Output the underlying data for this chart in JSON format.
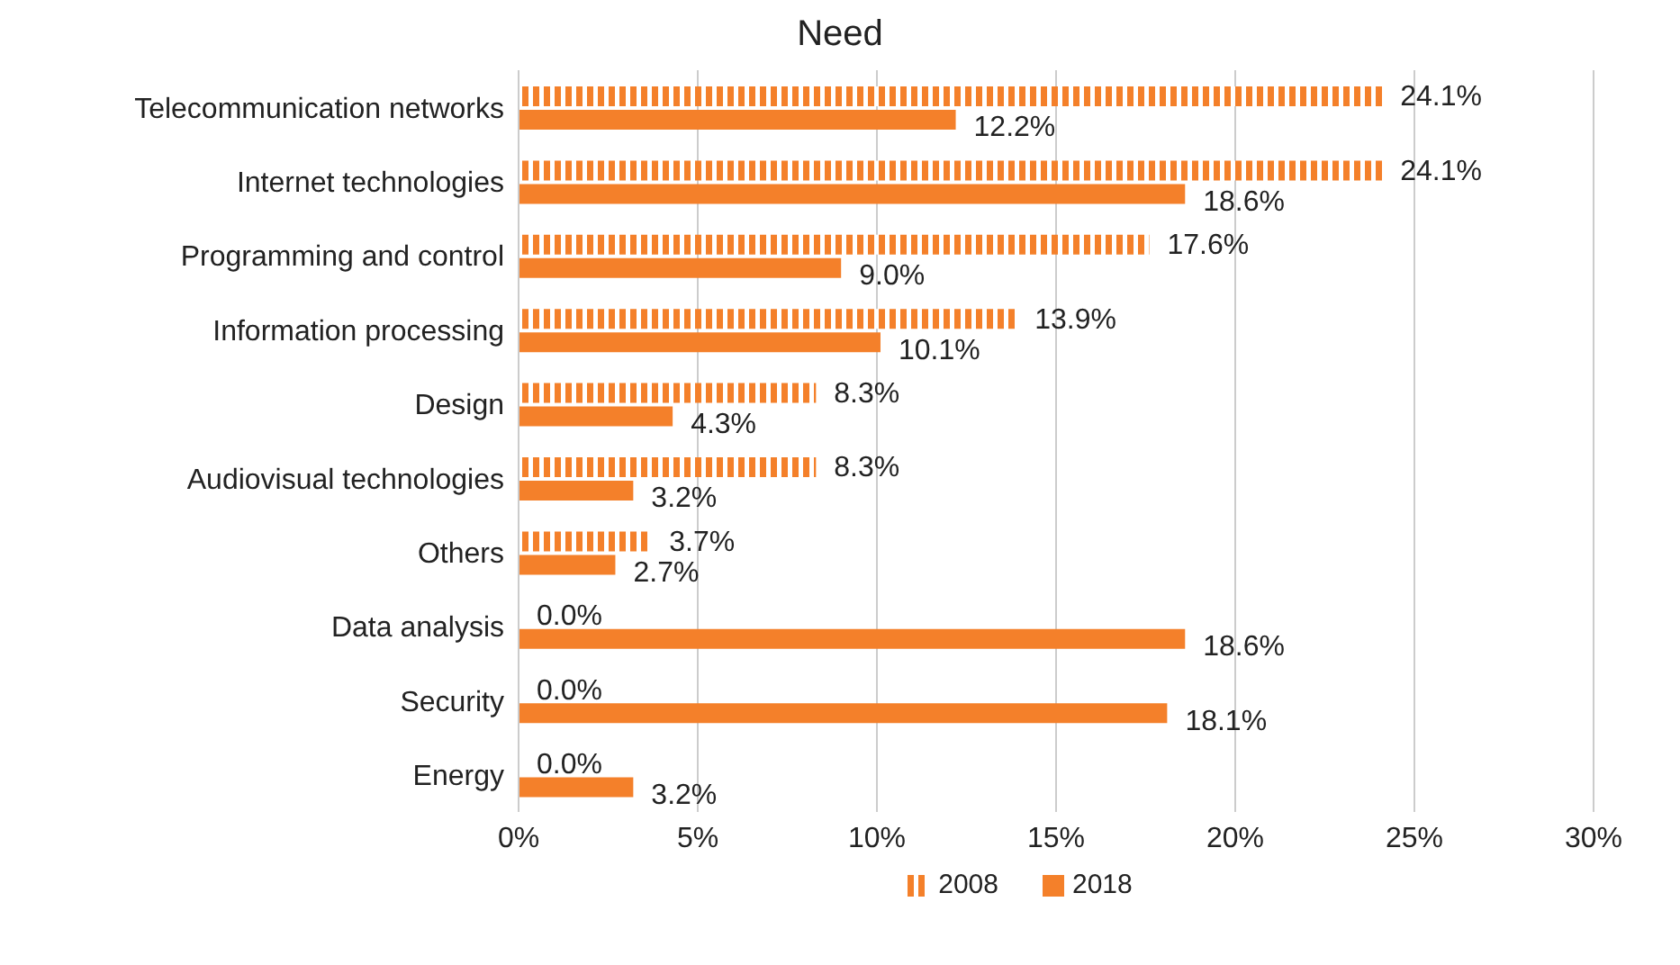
{
  "chart_data": {
    "type": "bar",
    "orientation": "horizontal",
    "title": "Need",
    "categories": [
      "Telecommunication networks",
      "Internet technologies",
      "Programming and control",
      "Information processing",
      "Design",
      "Audiovisual technologies",
      "Others",
      "Data analysis",
      "Security",
      "Energy"
    ],
    "series": [
      {
        "name": "2008",
        "color": "#f4802a",
        "values": [
          24.1,
          24.1,
          17.6,
          13.9,
          8.3,
          8.3,
          3.7,
          0,
          0,
          0
        ],
        "value_labels": [
          "24.1%",
          "24.1%",
          "17.6%",
          "13.9%",
          "8.3%",
          "8.3%",
          "3.7%",
          "0.0%",
          "0.0%",
          "0.0%"
        ]
      },
      {
        "name": "2018",
        "color": "#f4802a",
        "values": [
          12.2,
          18.6,
          9.0,
          10.1,
          4.3,
          3.2,
          2.7,
          18.6,
          18.1,
          3.2
        ],
        "value_labels": [
          "12.2%",
          "18.6%",
          "9.0%",
          "10.1%",
          "4.3%",
          "3.2%",
          "2.7%",
          "18.6%",
          "18.1%",
          "3.2%"
        ]
      }
    ],
    "xlim": [
      0,
      30
    ],
    "xticks": [
      {
        "value": 0,
        "label": "0%"
      },
      {
        "value": 5,
        "label": "5%"
      },
      {
        "value": 10,
        "label": "10%"
      },
      {
        "value": 15,
        "label": "15%"
      },
      {
        "value": 20,
        "label": "20%"
      },
      {
        "value": 25,
        "label": "25%"
      },
      {
        "value": 30,
        "label": "30%"
      }
    ],
    "grid": "x",
    "legend": "bottom"
  }
}
